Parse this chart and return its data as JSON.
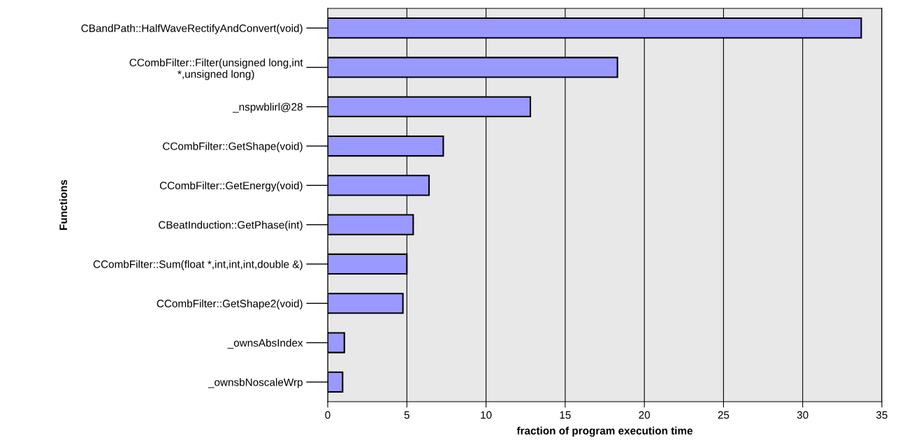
{
  "chart_data": {
    "type": "bar",
    "orientation": "horizontal",
    "xlabel": "fraction of program execution time",
    "ylabel": "Functions",
    "categories": [
      "CBandPath::HalfWaveRectifyAndConvert(void)",
      "CCombFilter::Filter(unsigned long,int\n*,unsigned long)",
      "_nspwblirl@28",
      "CCombFilter::GetShape(void)",
      "CCombFilter::GetEnergy(void)",
      "CBeatInduction::GetPhase(int)",
      "CCombFilter::Sum(float *,int,int,int,double &)",
      "CCombFilter::GetShape2(void)",
      "_ownsAbsIndex",
      "_ownsbNoscaleWrp"
    ],
    "values": [
      33.7,
      18.3,
      12.8,
      7.3,
      6.4,
      5.4,
      5.0,
      4.75,
      1.05,
      0.94
    ],
    "color": "#9999ff",
    "xlim": [
      0,
      35
    ],
    "xticks": [
      0,
      5,
      10,
      15,
      20,
      25,
      30,
      35
    ],
    "grid": "x",
    "legend": false
  }
}
